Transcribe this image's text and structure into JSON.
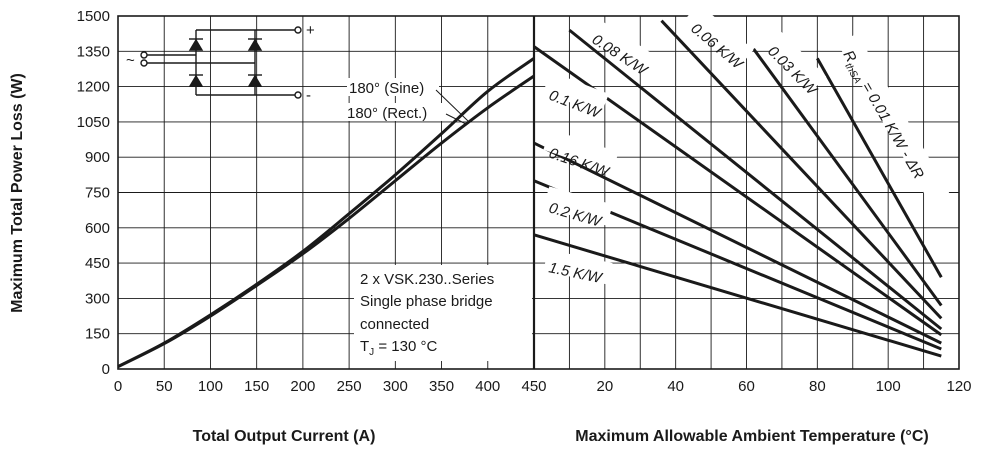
{
  "chart_data": [
    {
      "type": "line",
      "xlabel": "Total Output Current (A)",
      "ylabel": "Maximum Total Power Loss (W)",
      "xlim": [
        0,
        450
      ],
      "ylim": [
        0,
        1500
      ],
      "x_ticks": [
        "0",
        "50",
        "100",
        "150",
        "200",
        "250",
        "300",
        "350",
        "400",
        "450"
      ],
      "y_ticks": [
        "0",
        "150",
        "300",
        "450",
        "600",
        "750",
        "900",
        "1050",
        "1200",
        "1350",
        "1500"
      ],
      "grid": true,
      "series": [
        {
          "name": "180° (Sine)",
          "x": [
            0,
            50,
            100,
            150,
            200,
            250,
            300,
            350,
            400,
            450
          ],
          "y": [
            10,
            110,
            230,
            360,
            500,
            660,
            825,
            1000,
            1180,
            1320
          ]
        },
        {
          "name": "180° (Rect.)",
          "x": [
            0,
            50,
            100,
            150,
            200,
            250,
            300,
            350,
            400,
            450
          ],
          "y": [
            10,
            108,
            225,
            355,
            490,
            640,
            800,
            960,
            1110,
            1245
          ]
        }
      ],
      "annotations": [
        "2 x VSK.230..Series",
        "Single phase bridge",
        "connected",
        "T",
        "J",
        " = 130 °C"
      ],
      "schematic": {
        "plus": "+",
        "minus": "-",
        "ac": "~"
      }
    },
    {
      "type": "line",
      "xlabel": "Maximum Allowable Ambient Temperature (°C)",
      "xlim": [
        0,
        120
      ],
      "ylim": [
        0,
        1500
      ],
      "x_ticks": [
        "20",
        "40",
        "60",
        "80",
        "100",
        "120"
      ],
      "grid": true,
      "series": [
        {
          "name": "0.01 K/W - ΔR",
          "x": [
            80,
            115
          ],
          "y": [
            1320,
            390
          ]
        },
        {
          "name": "0.03 K/W",
          "x": [
            62,
            115
          ],
          "y": [
            1360,
            270
          ]
        },
        {
          "name": "0.06 K/W",
          "x": [
            36,
            115
          ],
          "y": [
            1480,
            215
          ]
        },
        {
          "name": "0.08 K/W",
          "x": [
            10,
            115
          ],
          "y": [
            1440,
            170
          ]
        },
        {
          "name": "0.1 K/W",
          "x": [
            0,
            115
          ],
          "y": [
            1370,
            145
          ]
        },
        {
          "name": "0.16 K/W",
          "x": [
            0,
            115
          ],
          "y": [
            960,
            110
          ]
        },
        {
          "name": "0.2 K/W",
          "x": [
            0,
            115
          ],
          "y": [
            800,
            85
          ]
        },
        {
          "name": "1.5 K/W",
          "x": [
            0,
            115
          ],
          "y": [
            570,
            55
          ]
        }
      ],
      "labels": {
        "rthsa_main": "R",
        "rthsa_sub": "thSA",
        "rthsa_rest": " = 0.01 K/W - ΔR"
      }
    }
  ]
}
